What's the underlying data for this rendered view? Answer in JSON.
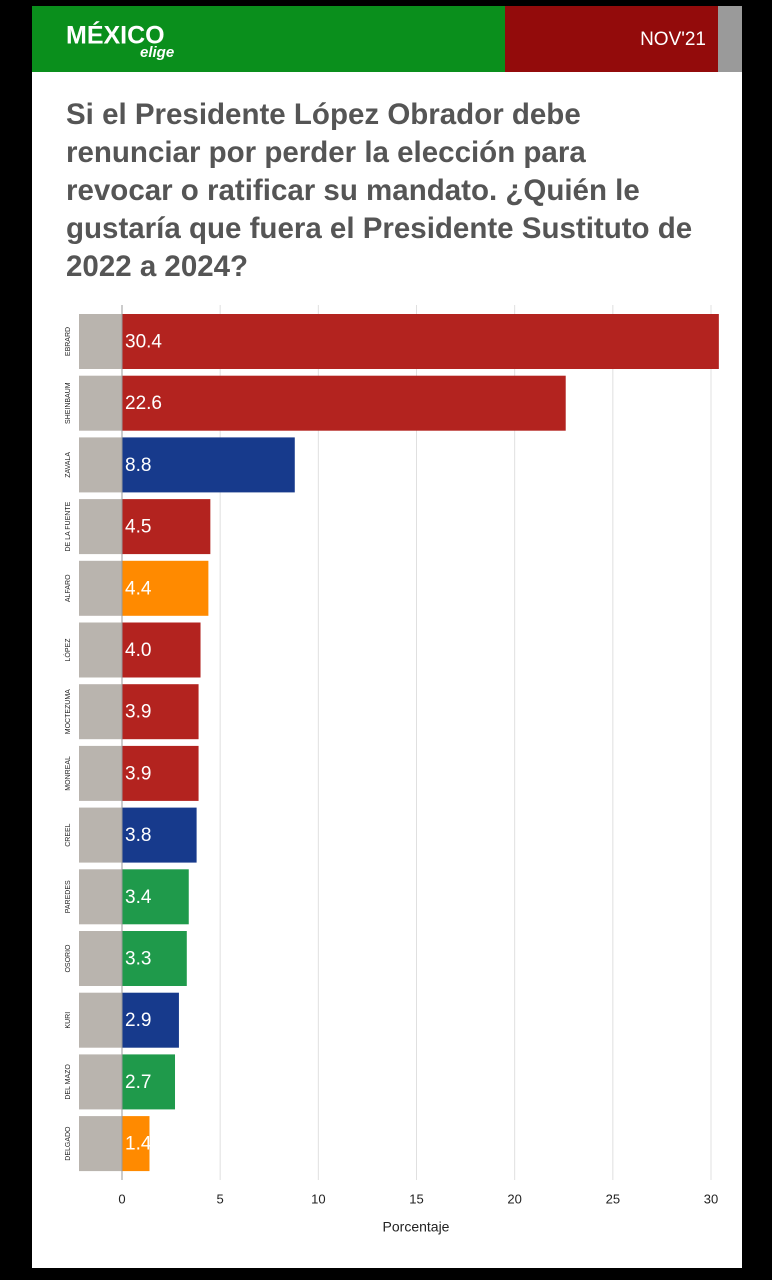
{
  "header": {
    "logo": "MÉXICO",
    "logo_sub": "elige",
    "date": "NOV'21"
  },
  "chart_data": {
    "type": "bar",
    "title": "Si el Presidente López Obrador debe renunciar por perder la elección para revocar o ratificar su mandato. ¿Quién le gustaría que fuera el Presidente Sustituto de 2022 a 2024?",
    "x_label": "Porcentaje",
    "categories": [
      "EBRARD",
      "SHEINBAUM",
      "ZAVALA",
      "DE LA FUENTE",
      "ALFARO",
      "LÓPEZ",
      "MOCTEZUMA",
      "MONREAL",
      "CREEL",
      "PAREDES",
      "OSORIO",
      "KURI",
      "DEL MAZO",
      "DELGADO"
    ],
    "values": [
      30.4,
      22.6,
      8.8,
      4.5,
      4.4,
      4.0,
      3.9,
      3.9,
      3.8,
      3.4,
      3.3,
      2.9,
      2.7,
      1.4
    ],
    "value_labels": [
      "30.4",
      "22.6",
      "8.8",
      "4.5",
      "4.4",
      "4.0",
      "3.9",
      "3.9",
      "3.8",
      "3.4",
      "3.3",
      "2.9",
      "2.7",
      "1.4"
    ],
    "colors": [
      "#b3231f",
      "#b3231f",
      "#173a8c",
      "#b3231f",
      "#ff8a00",
      "#b3231f",
      "#b3231f",
      "#b3231f",
      "#173a8c",
      "#1f9a4b",
      "#1f9a4b",
      "#173a8c",
      "#1f9a4b",
      "#ff8a00"
    ],
    "xlim": [
      0,
      30
    ],
    "xticks": [
      0,
      5,
      10,
      15,
      20,
      25,
      30
    ],
    "grid": true
  }
}
